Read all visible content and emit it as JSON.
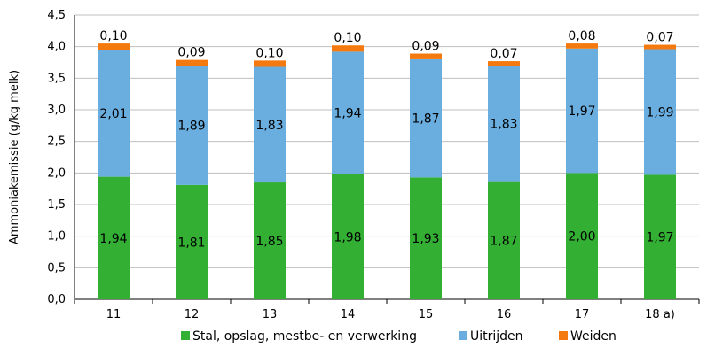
{
  "chart_data": {
    "type": "bar",
    "stacked": true,
    "title": "",
    "xlabel": "",
    "ylabel": "Ammoniakemissie (g/kg melk)",
    "ylim": [
      0,
      4.5
    ],
    "ytick_step": 0.5,
    "ytick_labels": [
      "0,0",
      "0,5",
      "1,0",
      "1,5",
      "2,0",
      "2,5",
      "3,0",
      "3,5",
      "4,0",
      "4,5"
    ],
    "categories": [
      "11",
      "12",
      "13",
      "14",
      "15",
      "16",
      "17",
      "18 a)"
    ],
    "legend_position": "bottom",
    "series": [
      {
        "name": "Stal, opslag, mestbe- en verwerking",
        "color": "#33b033",
        "values": [
          1.94,
          1.81,
          1.85,
          1.98,
          1.93,
          1.87,
          2.0,
          1.97
        ],
        "labels": [
          "1,94",
          "1,81",
          "1,85",
          "1,98",
          "1,93",
          "1,87",
          "2,00",
          "1,97"
        ]
      },
      {
        "name": "Uitrijden",
        "color": "#6aaee0",
        "values": [
          2.01,
          1.89,
          1.83,
          1.94,
          1.87,
          1.83,
          1.97,
          1.99
        ],
        "labels": [
          "2,01",
          "1,89",
          "1,83",
          "1,94",
          "1,87",
          "1,83",
          "1,97",
          "1,99"
        ]
      },
      {
        "name": "Weiden",
        "color": "#f47a0f",
        "values": [
          0.1,
          0.09,
          0.1,
          0.1,
          0.09,
          0.07,
          0.08,
          0.07
        ],
        "labels": [
          "0,10",
          "0,09",
          "0,10",
          "0,10",
          "0,09",
          "0,07",
          "0,08",
          "0,07"
        ]
      }
    ]
  }
}
